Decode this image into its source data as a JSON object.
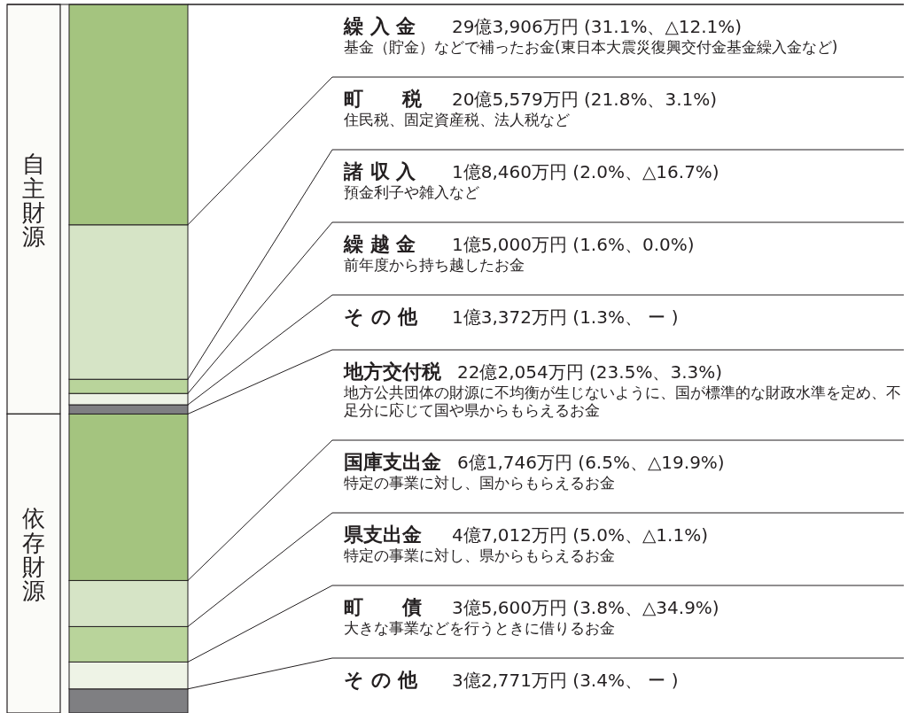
{
  "chart_data": {
    "type": "bar",
    "stacked": true,
    "categories": [
      null
    ],
    "series": [
      {
        "name": "そ の 他",
        "color": "#7f7f82",
        "values": [
          3.4
        ],
        "value_labels": [
          "3億2,771万円 (3.4%、 ー )"
        ]
      },
      {
        "name": "町　　債",
        "color": "#eef3e6",
        "values": [
          3.8
        ],
        "value_labels": [
          "3億5,600万円 (3.8%、△34.9%)"
        ]
      },
      {
        "name": "県支出金",
        "color": "#b9d49b",
        "values": [
          5.0
        ],
        "value_labels": [
          "4億7,012万円 (5.0%、△1.1%)"
        ]
      },
      {
        "name": "国庫支出金",
        "color": "#d6e4c6",
        "values": [
          6.5
        ],
        "value_labels": [
          "6億1,746万円 (6.5%、△19.9%)"
        ]
      },
      {
        "name": "地方交付税",
        "color": "#a4c47f",
        "values": [
          23.5
        ],
        "value_labels": [
          "22億2,054万円 (23.5%、3.3%)"
        ]
      },
      {
        "name": "そ の 他",
        "color": "#7f7f82",
        "values": [
          1.3
        ],
        "value_labels": [
          "1億3,372万円 (1.3%、 ー )"
        ]
      },
      {
        "name": "繰 越 金",
        "color": "#eef3e6",
        "values": [
          1.6
        ],
        "value_labels": [
          "1億5,000万円 (1.6%、0.0%)"
        ]
      },
      {
        "name": "諸 収 入",
        "color": "#b9d49b",
        "values": [
          2.0
        ],
        "value_labels": [
          "1億8,460万円 (2.0%、△16.7%)"
        ]
      },
      {
        "name": "町　　税",
        "color": "#d6e4c6",
        "values": [
          21.8
        ],
        "value_labels": [
          "20億5,579万円 (21.8%、3.1%)"
        ]
      },
      {
        "name": "繰 入 金",
        "color": "#a4c47f",
        "values": [
          31.1
        ],
        "value_labels": [
          "29億3,906万円 (31.1%、△12.1%)"
        ]
      }
    ],
    "bands": [
      {
        "axis": "y",
        "from": 42.2,
        "to": 100,
        "label": "自主財源",
        "color": "#fbfbf8"
      },
      {
        "axis": "y",
        "from": 0,
        "to": 42.2,
        "label": "依存財源",
        "color": "#fbfbf8"
      }
    ],
    "annotations": [
      "基金（貯金）などで補ったお金(東日本大震災復興交付金基金繰入金など)",
      "住民税、固定資産税、法人税など",
      "預金利子や雑入など",
      "前年度から持ち越したお金",
      null,
      "地方公共団体の財源に不均衡が生じないように、国が標準的な財政水準を定め、不足分に応じて国や県からもらえるお金",
      "特定の事業に対し、国からもらえるお金",
      "特定の事業に対し、県からもらえるお金",
      "大きな事業などを行うときに借りるお金",
      null
    ]
  }
}
